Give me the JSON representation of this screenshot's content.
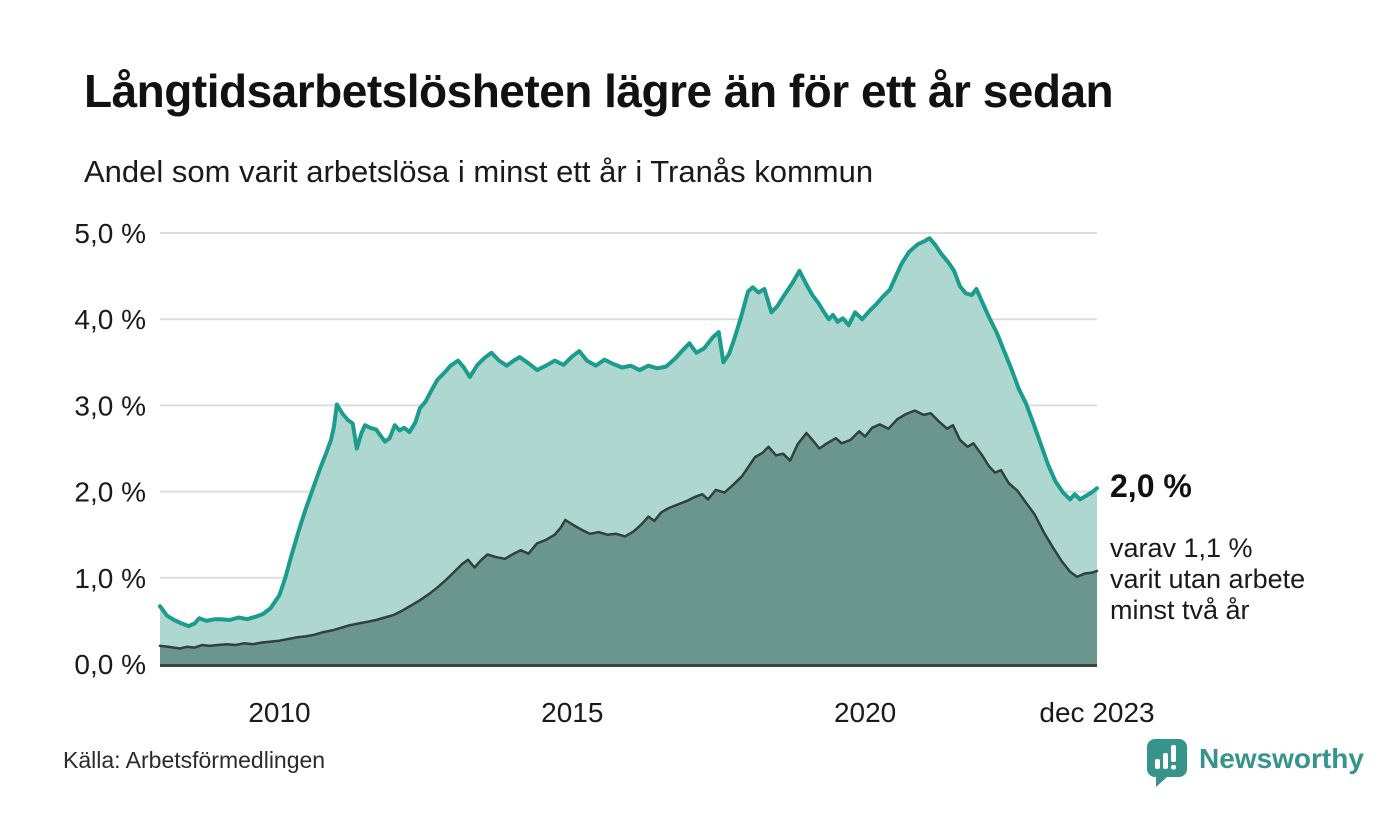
{
  "header": {
    "title": "Långtidsarbetslösheten lägre än för ett år sedan",
    "subtitle": "Andel som varit arbetslösa i minst ett år i Tranås kommun"
  },
  "chart_data": {
    "type": "area",
    "title": "Långtidsarbetslösheten lägre än för ett år sedan",
    "subtitle": "Andel som varit arbetslösa i minst ett år i Tranås kommun",
    "xlabel": "",
    "ylabel": "",
    "unit": "%",
    "grid": true,
    "legend_position": "none",
    "x_range": [
      2007.96,
      2023.96
    ],
    "y_range": [
      0,
      5
    ],
    "x_ticks": [
      {
        "label": "2010",
        "t": 2010
      },
      {
        "label": "2015",
        "t": 2015
      },
      {
        "label": "2020",
        "t": 2020
      },
      {
        "label": "dec 2023",
        "t": 2023.96
      }
    ],
    "y_ticks": [
      {
        "label": "0,0 %",
        "v": 0
      },
      {
        "label": "1,0 %",
        "v": 1
      },
      {
        "label": "2,0 %",
        "v": 2
      },
      {
        "label": "3,0 %",
        "v": 3
      },
      {
        "label": "4,0 %",
        "v": 4
      },
      {
        "label": "5,0 %",
        "v": 5
      }
    ],
    "series": [
      {
        "name": "Arbetslösa minst ett år",
        "line_color": "#1b9c8d",
        "fill_color": "#aed7d0",
        "line_width": 4,
        "last_value": 2.0,
        "points": [
          [
            2007.96,
            0.67
          ],
          [
            2008.08,
            0.56
          ],
          [
            2008.2,
            0.51
          ],
          [
            2008.33,
            0.47
          ],
          [
            2008.45,
            0.44
          ],
          [
            2008.55,
            0.47
          ],
          [
            2008.63,
            0.53
          ],
          [
            2008.75,
            0.5
          ],
          [
            2008.9,
            0.52
          ],
          [
            2009.0,
            0.52
          ],
          [
            2009.15,
            0.51
          ],
          [
            2009.3,
            0.54
          ],
          [
            2009.45,
            0.52
          ],
          [
            2009.6,
            0.55
          ],
          [
            2009.72,
            0.58
          ],
          [
            2009.85,
            0.65
          ],
          [
            2010.0,
            0.8
          ],
          [
            2010.1,
            1.0
          ],
          [
            2010.2,
            1.25
          ],
          [
            2010.33,
            1.55
          ],
          [
            2010.45,
            1.8
          ],
          [
            2010.58,
            2.05
          ],
          [
            2010.7,
            2.28
          ],
          [
            2010.8,
            2.45
          ],
          [
            2010.88,
            2.6
          ],
          [
            2010.93,
            2.75
          ],
          [
            2010.98,
            3.01
          ],
          [
            2011.08,
            2.9
          ],
          [
            2011.17,
            2.83
          ],
          [
            2011.25,
            2.79
          ],
          [
            2011.32,
            2.5
          ],
          [
            2011.4,
            2.68
          ],
          [
            2011.46,
            2.77
          ],
          [
            2011.55,
            2.74
          ],
          [
            2011.65,
            2.72
          ],
          [
            2011.8,
            2.58
          ],
          [
            2011.88,
            2.62
          ],
          [
            2011.97,
            2.77
          ],
          [
            2012.05,
            2.71
          ],
          [
            2012.13,
            2.74
          ],
          [
            2012.22,
            2.69
          ],
          [
            2012.32,
            2.8
          ],
          [
            2012.4,
            2.97
          ],
          [
            2012.49,
            3.04
          ],
          [
            2012.6,
            3.18
          ],
          [
            2012.7,
            3.3
          ],
          [
            2012.82,
            3.38
          ],
          [
            2012.92,
            3.46
          ],
          [
            2013.05,
            3.52
          ],
          [
            2013.15,
            3.44
          ],
          [
            2013.25,
            3.33
          ],
          [
            2013.38,
            3.47
          ],
          [
            2013.5,
            3.55
          ],
          [
            2013.62,
            3.61
          ],
          [
            2013.75,
            3.52
          ],
          [
            2013.88,
            3.46
          ],
          [
            2014.0,
            3.52
          ],
          [
            2014.1,
            3.56
          ],
          [
            2014.25,
            3.49
          ],
          [
            2014.4,
            3.41
          ],
          [
            2014.55,
            3.46
          ],
          [
            2014.7,
            3.52
          ],
          [
            2014.85,
            3.47
          ],
          [
            2015.0,
            3.57
          ],
          [
            2015.12,
            3.63
          ],
          [
            2015.25,
            3.52
          ],
          [
            2015.4,
            3.46
          ],
          [
            2015.55,
            3.53
          ],
          [
            2015.7,
            3.48
          ],
          [
            2015.85,
            3.44
          ],
          [
            2016.0,
            3.46
          ],
          [
            2016.15,
            3.41
          ],
          [
            2016.3,
            3.46
          ],
          [
            2016.45,
            3.43
          ],
          [
            2016.6,
            3.45
          ],
          [
            2016.75,
            3.54
          ],
          [
            2016.9,
            3.65
          ],
          [
            2017.0,
            3.72
          ],
          [
            2017.12,
            3.61
          ],
          [
            2017.25,
            3.66
          ],
          [
            2017.4,
            3.79
          ],
          [
            2017.5,
            3.85
          ],
          [
            2017.58,
            3.5
          ],
          [
            2017.68,
            3.6
          ],
          [
            2017.78,
            3.8
          ],
          [
            2017.88,
            4.02
          ],
          [
            2018.0,
            4.32
          ],
          [
            2018.08,
            4.37
          ],
          [
            2018.18,
            4.31
          ],
          [
            2018.28,
            4.35
          ],
          [
            2018.4,
            4.08
          ],
          [
            2018.5,
            4.15
          ],
          [
            2018.62,
            4.28
          ],
          [
            2018.75,
            4.41
          ],
          [
            2018.88,
            4.56
          ],
          [
            2019.0,
            4.4
          ],
          [
            2019.1,
            4.28
          ],
          [
            2019.2,
            4.19
          ],
          [
            2019.3,
            4.08
          ],
          [
            2019.38,
            4.0
          ],
          [
            2019.45,
            4.05
          ],
          [
            2019.53,
            3.97
          ],
          [
            2019.62,
            4.01
          ],
          [
            2019.72,
            3.93
          ],
          [
            2019.83,
            4.08
          ],
          [
            2019.95,
            4.0
          ],
          [
            2020.08,
            4.1
          ],
          [
            2020.2,
            4.18
          ],
          [
            2020.3,
            4.26
          ],
          [
            2020.42,
            4.34
          ],
          [
            2020.52,
            4.49
          ],
          [
            2020.62,
            4.64
          ],
          [
            2020.75,
            4.78
          ],
          [
            2020.9,
            4.87
          ],
          [
            2021.0,
            4.9
          ],
          [
            2021.1,
            4.94
          ],
          [
            2021.2,
            4.86
          ],
          [
            2021.3,
            4.76
          ],
          [
            2021.42,
            4.66
          ],
          [
            2021.52,
            4.56
          ],
          [
            2021.62,
            4.38
          ],
          [
            2021.72,
            4.3
          ],
          [
            2021.82,
            4.28
          ],
          [
            2021.9,
            4.35
          ],
          [
            2022.0,
            4.2
          ],
          [
            2022.12,
            4.02
          ],
          [
            2022.25,
            3.84
          ],
          [
            2022.38,
            3.62
          ],
          [
            2022.5,
            3.42
          ],
          [
            2022.62,
            3.2
          ],
          [
            2022.75,
            3.02
          ],
          [
            2022.88,
            2.78
          ],
          [
            2023.0,
            2.55
          ],
          [
            2023.12,
            2.32
          ],
          [
            2023.25,
            2.12
          ],
          [
            2023.38,
            1.99
          ],
          [
            2023.5,
            1.91
          ],
          [
            2023.58,
            1.97
          ],
          [
            2023.67,
            1.91
          ],
          [
            2023.77,
            1.95
          ],
          [
            2023.87,
            1.99
          ],
          [
            2023.96,
            2.04
          ]
        ]
      },
      {
        "name": "Arbetslösa minst två år",
        "line_color": "#30403c",
        "fill_color": "#6b968e",
        "line_width": 2.5,
        "last_value": 1.1,
        "points": [
          [
            2007.96,
            0.21
          ],
          [
            2008.1,
            0.2
          ],
          [
            2008.2,
            0.19
          ],
          [
            2008.3,
            0.18
          ],
          [
            2008.42,
            0.2
          ],
          [
            2008.55,
            0.19
          ],
          [
            2008.68,
            0.22
          ],
          [
            2008.8,
            0.21
          ],
          [
            2008.95,
            0.22
          ],
          [
            2009.1,
            0.23
          ],
          [
            2009.25,
            0.22
          ],
          [
            2009.4,
            0.24
          ],
          [
            2009.55,
            0.23
          ],
          [
            2009.7,
            0.25
          ],
          [
            2009.85,
            0.26
          ],
          [
            2010.0,
            0.27
          ],
          [
            2010.15,
            0.29
          ],
          [
            2010.3,
            0.31
          ],
          [
            2010.45,
            0.32
          ],
          [
            2010.6,
            0.34
          ],
          [
            2010.75,
            0.37
          ],
          [
            2010.9,
            0.39
          ],
          [
            2011.05,
            0.42
          ],
          [
            2011.2,
            0.45
          ],
          [
            2011.35,
            0.47
          ],
          [
            2011.5,
            0.49
          ],
          [
            2011.65,
            0.51
          ],
          [
            2011.8,
            0.54
          ],
          [
            2011.95,
            0.57
          ],
          [
            2012.1,
            0.62
          ],
          [
            2012.25,
            0.68
          ],
          [
            2012.4,
            0.74
          ],
          [
            2012.55,
            0.81
          ],
          [
            2012.7,
            0.89
          ],
          [
            2012.85,
            0.98
          ],
          [
            2013.0,
            1.08
          ],
          [
            2013.12,
            1.16
          ],
          [
            2013.22,
            1.21
          ],
          [
            2013.33,
            1.12
          ],
          [
            2013.45,
            1.21
          ],
          [
            2013.55,
            1.27
          ],
          [
            2013.7,
            1.24
          ],
          [
            2013.85,
            1.22
          ],
          [
            2014.0,
            1.28
          ],
          [
            2014.12,
            1.32
          ],
          [
            2014.25,
            1.28
          ],
          [
            2014.4,
            1.4
          ],
          [
            2014.55,
            1.44
          ],
          [
            2014.7,
            1.5
          ],
          [
            2014.8,
            1.58
          ],
          [
            2014.88,
            1.67
          ],
          [
            2015.0,
            1.62
          ],
          [
            2015.15,
            1.56
          ],
          [
            2015.3,
            1.51
          ],
          [
            2015.45,
            1.53
          ],
          [
            2015.6,
            1.5
          ],
          [
            2015.75,
            1.51
          ],
          [
            2015.9,
            1.48
          ],
          [
            2016.05,
            1.54
          ],
          [
            2016.18,
            1.62
          ],
          [
            2016.3,
            1.71
          ],
          [
            2016.4,
            1.66
          ],
          [
            2016.52,
            1.76
          ],
          [
            2016.65,
            1.81
          ],
          [
            2016.8,
            1.85
          ],
          [
            2016.95,
            1.89
          ],
          [
            2017.1,
            1.94
          ],
          [
            2017.22,
            1.97
          ],
          [
            2017.32,
            1.91
          ],
          [
            2017.45,
            2.02
          ],
          [
            2017.6,
            1.99
          ],
          [
            2017.75,
            2.08
          ],
          [
            2017.9,
            2.18
          ],
          [
            2018.0,
            2.28
          ],
          [
            2018.12,
            2.4
          ],
          [
            2018.25,
            2.45
          ],
          [
            2018.35,
            2.52
          ],
          [
            2018.48,
            2.42
          ],
          [
            2018.6,
            2.44
          ],
          [
            2018.72,
            2.36
          ],
          [
            2018.85,
            2.55
          ],
          [
            2019.0,
            2.68
          ],
          [
            2019.1,
            2.6
          ],
          [
            2019.22,
            2.5
          ],
          [
            2019.35,
            2.56
          ],
          [
            2019.5,
            2.62
          ],
          [
            2019.6,
            2.56
          ],
          [
            2019.75,
            2.6
          ],
          [
            2019.9,
            2.7
          ],
          [
            2020.0,
            2.64
          ],
          [
            2020.12,
            2.74
          ],
          [
            2020.25,
            2.78
          ],
          [
            2020.4,
            2.73
          ],
          [
            2020.55,
            2.84
          ],
          [
            2020.7,
            2.9
          ],
          [
            2020.85,
            2.94
          ],
          [
            2021.0,
            2.89
          ],
          [
            2021.12,
            2.91
          ],
          [
            2021.25,
            2.82
          ],
          [
            2021.4,
            2.73
          ],
          [
            2021.5,
            2.77
          ],
          [
            2021.62,
            2.6
          ],
          [
            2021.75,
            2.52
          ],
          [
            2021.85,
            2.56
          ],
          [
            2022.0,
            2.42
          ],
          [
            2022.12,
            2.29
          ],
          [
            2022.22,
            2.22
          ],
          [
            2022.32,
            2.25
          ],
          [
            2022.45,
            2.1
          ],
          [
            2022.6,
            2.01
          ],
          [
            2022.75,
            1.87
          ],
          [
            2022.9,
            1.73
          ],
          [
            2023.05,
            1.53
          ],
          [
            2023.2,
            1.36
          ],
          [
            2023.35,
            1.2
          ],
          [
            2023.5,
            1.07
          ],
          [
            2023.62,
            1.01
          ],
          [
            2023.75,
            1.05
          ],
          [
            2023.88,
            1.06
          ],
          [
            2023.96,
            1.08
          ]
        ]
      }
    ],
    "annotations": {
      "value_label": "2,0 %",
      "sub_label_lines": [
        "varav 1,1 %",
        "varit utan arbete",
        "minst två år"
      ]
    }
  },
  "footer": {
    "source": "Källa: Arbetsförmedlingen",
    "brand": "Newsworthy"
  },
  "colors": {
    "line_total": "#1b9c8d",
    "fill_total": "#aed7d0",
    "line_two_years": "#30403c",
    "fill_two_years": "#6b968e",
    "gridline": "#dbdde0",
    "axis": "#3c4340",
    "tick_text": "#1a1a1a",
    "brand_teal": "#36948d"
  }
}
